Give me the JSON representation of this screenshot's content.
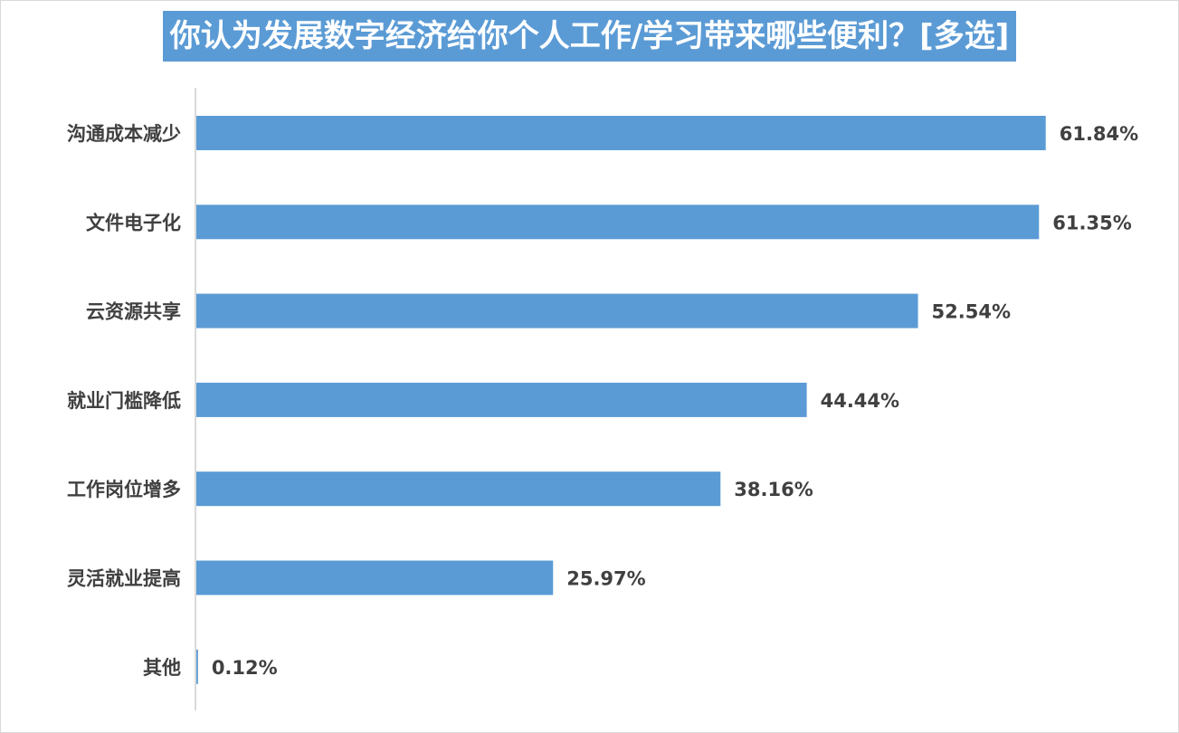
{
  "chart_data": {
    "type": "bar",
    "orientation": "horizontal",
    "title": "你认为发展数字经济给你个人工作/学习带来哪些便利？[多选]",
    "categories": [
      "沟通成本减少",
      "文件电子化",
      "云资源共享",
      "就业门槛降低",
      "工作岗位增多",
      "灵活就业提高",
      "其他"
    ],
    "values": [
      61.84,
      61.35,
      52.54,
      44.44,
      38.16,
      25.97,
      0.12
    ],
    "value_labels": [
      "61.84%",
      "61.35%",
      "52.54%",
      "44.44%",
      "38.16%",
      "25.97%",
      "0.12%"
    ],
    "unit": "%",
    "xlim": [
      0,
      70
    ],
    "grid": false,
    "legend": "none",
    "colors": {
      "bar": "#5b9bd5",
      "title_bg": "#5b9bd5",
      "title_text": "#ffffff",
      "label": "#404040",
      "axis": "#d9d9d9"
    }
  }
}
